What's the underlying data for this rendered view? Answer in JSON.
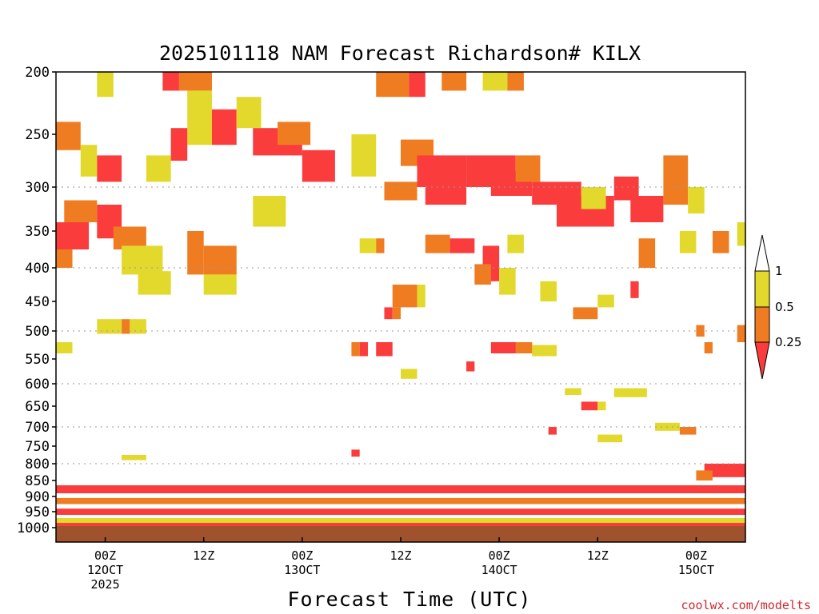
{
  "chart_data": {
    "type": "heatmap",
    "title": "2025101118 NAM Forecast Richardson# KILX",
    "xlabel": "Forecast Time (UTC)",
    "ylabel": "",
    "credit": "coolwx.com/modelts",
    "y_axis": {
      "scale": "pressure (hPa), inverted",
      "range": [
        1000,
        200
      ],
      "ticks": [
        "200",
        "250",
        "300",
        "350",
        "400",
        "450",
        "500",
        "550",
        "600",
        "650",
        "700",
        "750",
        "800",
        "850",
        "900",
        "950",
        "1000"
      ],
      "gridlines": [
        "300",
        "400",
        "500",
        "600",
        "700",
        "800"
      ]
    },
    "x_axis": {
      "range_hours": [
        -6,
        78
      ],
      "ticks": [
        {
          "hour": 0,
          "lines": [
            "00Z",
            "12OCT",
            "2025"
          ]
        },
        {
          "hour": 12,
          "lines": [
            "12Z"
          ]
        },
        {
          "hour": 24,
          "lines": [
            "00Z",
            "13OCT"
          ]
        },
        {
          "hour": 36,
          "lines": [
            "12Z"
          ]
        },
        {
          "hour": 48,
          "lines": [
            "00Z",
            "14OCT"
          ]
        },
        {
          "hour": 60,
          "lines": [
            "12Z"
          ]
        },
        {
          "hour": 72,
          "lines": [
            "00Z",
            "15OCT"
          ]
        }
      ]
    },
    "legend": {
      "placement": "right",
      "levels": [
        "1",
        "0.5",
        "0.25"
      ],
      "bins": [
        {
          "range": "0.5-1",
          "color": "#e2d92c"
        },
        {
          "range": "0.25-0.5",
          "color": "#f07c22"
        },
        {
          "range": "<0.25",
          "color": "#fa3c3c"
        }
      ]
    },
    "colors": {
      "high": "#e2d92c",
      "mid": "#f07c22",
      "low": "#fa3c3c",
      "ground": "#a0522d"
    },
    "cells": [
      {
        "t0": -1,
        "t1": 1,
        "p0": 200,
        "p1": 220,
        "c": "high"
      },
      {
        "t0": 7,
        "t1": 9,
        "p0": 200,
        "p1": 215,
        "c": "low"
      },
      {
        "t0": 9,
        "t1": 13,
        "p0": 200,
        "p1": 215,
        "c": "mid"
      },
      {
        "t0": 10,
        "t1": 13,
        "p0": 215,
        "p1": 260,
        "c": "high"
      },
      {
        "t0": 13,
        "t1": 16,
        "p0": 230,
        "p1": 260,
        "c": "low"
      },
      {
        "t0": 16,
        "t1": 19,
        "p0": 220,
        "p1": 245,
        "c": "high"
      },
      {
        "t0": 18,
        "t1": 24,
        "p0": 245,
        "p1": 270,
        "c": "low"
      },
      {
        "t0": 21,
        "t1": 25,
        "p0": 240,
        "p1": 260,
        "c": "mid"
      },
      {
        "t0": 24,
        "t1": 28,
        "p0": 265,
        "p1": 295,
        "c": "low"
      },
      {
        "t0": 33,
        "t1": 37,
        "p0": 200,
        "p1": 220,
        "c": "mid"
      },
      {
        "t0": 37,
        "t1": 39,
        "p0": 200,
        "p1": 220,
        "c": "low"
      },
      {
        "t0": 41,
        "t1": 44,
        "p0": 200,
        "p1": 215,
        "c": "mid"
      },
      {
        "t0": 46,
        "t1": 49,
        "p0": 200,
        "p1": 215,
        "c": "high"
      },
      {
        "t0": 49,
        "t1": 51,
        "p0": 200,
        "p1": 215,
        "c": "mid"
      },
      {
        "t0": -6,
        "t1": -3,
        "p0": 240,
        "p1": 265,
        "c": "mid"
      },
      {
        "t0": -3,
        "t1": -1,
        "p0": 260,
        "p1": 290,
        "c": "high"
      },
      {
        "t0": -1,
        "t1": 2,
        "p0": 270,
        "p1": 295,
        "c": "low"
      },
      {
        "t0": 5,
        "t1": 8,
        "p0": 270,
        "p1": 295,
        "c": "high"
      },
      {
        "t0": 8,
        "t1": 10,
        "p0": 245,
        "p1": 275,
        "c": "low"
      },
      {
        "t0": 30,
        "t1": 33,
        "p0": 250,
        "p1": 290,
        "c": "high"
      },
      {
        "t0": 36,
        "t1": 40,
        "p0": 255,
        "p1": 280,
        "c": "mid"
      },
      {
        "t0": 38,
        "t1": 44,
        "p0": 270,
        "p1": 300,
        "c": "low"
      },
      {
        "t0": 34,
        "t1": 38,
        "p0": 295,
        "p1": 315,
        "c": "mid"
      },
      {
        "t0": 39,
        "t1": 44,
        "p0": 295,
        "p1": 320,
        "c": "low"
      },
      {
        "t0": 44,
        "t1": 50,
        "p0": 270,
        "p1": 300,
        "c": "low"
      },
      {
        "t0": 47,
        "t1": 52,
        "p0": 285,
        "p1": 310,
        "c": "low"
      },
      {
        "t0": 50,
        "t1": 53,
        "p0": 270,
        "p1": 295,
        "c": "mid"
      },
      {
        "t0": 52,
        "t1": 58,
        "p0": 295,
        "p1": 320,
        "c": "low"
      },
      {
        "t0": 55,
        "t1": 62,
        "p0": 310,
        "p1": 345,
        "c": "low"
      },
      {
        "t0": 58,
        "t1": 61,
        "p0": 300,
        "p1": 325,
        "c": "high"
      },
      {
        "t0": 62,
        "t1": 65,
        "p0": 290,
        "p1": 315,
        "c": "low"
      },
      {
        "t0": 64,
        "t1": 68,
        "p0": 310,
        "p1": 340,
        "c": "low"
      },
      {
        "t0": 68,
        "t1": 71,
        "p0": 270,
        "p1": 320,
        "c": "mid"
      },
      {
        "t0": 71,
        "t1": 73,
        "p0": 300,
        "p1": 330,
        "c": "high"
      },
      {
        "t0": -6,
        "t1": -2,
        "p0": 340,
        "p1": 375,
        "c": "low"
      },
      {
        "t0": -5,
        "t1": -1,
        "p0": 315,
        "p1": 340,
        "c": "mid"
      },
      {
        "t0": -1,
        "t1": 2,
        "p0": 320,
        "p1": 360,
        "c": "low"
      },
      {
        "t0": 1,
        "t1": 5,
        "p0": 345,
        "p1": 375,
        "c": "mid"
      },
      {
        "t0": -6,
        "t1": -4,
        "p0": 375,
        "p1": 400,
        "c": "mid"
      },
      {
        "t0": 2,
        "t1": 7,
        "p0": 370,
        "p1": 410,
        "c": "high"
      },
      {
        "t0": 4,
        "t1": 8,
        "p0": 405,
        "p1": 440,
        "c": "high"
      },
      {
        "t0": 10,
        "t1": 12,
        "p0": 350,
        "p1": 410,
        "c": "mid"
      },
      {
        "t0": 12,
        "t1": 16,
        "p0": 370,
        "p1": 410,
        "c": "mid"
      },
      {
        "t0": 12,
        "t1": 16,
        "p0": 410,
        "p1": 440,
        "c": "high"
      },
      {
        "t0": 18,
        "t1": 22,
        "p0": 310,
        "p1": 345,
        "c": "high"
      },
      {
        "t0": 31,
        "t1": 33,
        "p0": 360,
        "p1": 380,
        "c": "high"
      },
      {
        "t0": 33,
        "t1": 34,
        "p0": 360,
        "p1": 380,
        "c": "mid"
      },
      {
        "t0": 42,
        "t1": 45,
        "p0": 360,
        "p1": 380,
        "c": "low"
      },
      {
        "t0": 39,
        "t1": 42,
        "p0": 355,
        "p1": 380,
        "c": "mid"
      },
      {
        "t0": 46,
        "t1": 48,
        "p0": 370,
        "p1": 420,
        "c": "low"
      },
      {
        "t0": 45,
        "t1": 47,
        "p0": 395,
        "p1": 425,
        "c": "mid"
      },
      {
        "t0": 48,
        "t1": 50,
        "p0": 400,
        "p1": 440,
        "c": "high"
      },
      {
        "t0": 49,
        "t1": 51,
        "p0": 355,
        "p1": 380,
        "c": "high"
      },
      {
        "t0": 65,
        "t1": 67,
        "p0": 360,
        "p1": 400,
        "c": "mid"
      },
      {
        "t0": 70,
        "t1": 72,
        "p0": 350,
        "p1": 380,
        "c": "high"
      },
      {
        "t0": 74,
        "t1": 76,
        "p0": 350,
        "p1": 380,
        "c": "mid"
      },
      {
        "t0": 77,
        "t1": 78,
        "p0": 340,
        "p1": 370,
        "c": "high"
      },
      {
        "t0": 35,
        "t1": 38,
        "p0": 425,
        "p1": 460,
        "c": "mid"
      },
      {
        "t0": 38,
        "t1": 39,
        "p0": 425,
        "p1": 460,
        "c": "high"
      },
      {
        "t0": 53,
        "t1": 55,
        "p0": 420,
        "p1": 450,
        "c": "high"
      },
      {
        "t0": 57,
        "t1": 60,
        "p0": 460,
        "p1": 480,
        "c": "mid"
      },
      {
        "t0": 60,
        "t1": 62,
        "p0": 440,
        "p1": 460,
        "c": "high"
      },
      {
        "t0": 64,
        "t1": 65,
        "p0": 420,
        "p1": 445,
        "c": "low"
      },
      {
        "t0": 34,
        "t1": 35,
        "p0": 460,
        "p1": 480,
        "c": "low"
      },
      {
        "t0": 35,
        "t1": 36,
        "p0": 460,
        "p1": 480,
        "c": "mid"
      },
      {
        "t0": -1,
        "t1": 2,
        "p0": 480,
        "p1": 505,
        "c": "high"
      },
      {
        "t0": 2,
        "t1": 3,
        "p0": 480,
        "p1": 505,
        "c": "mid"
      },
      {
        "t0": 3,
        "t1": 5,
        "p0": 480,
        "p1": 505,
        "c": "high"
      },
      {
        "t0": -6,
        "t1": -4,
        "p0": 520,
        "p1": 540,
        "c": "high"
      },
      {
        "t0": 30,
        "t1": 31,
        "p0": 520,
        "p1": 545,
        "c": "mid"
      },
      {
        "t0": 31,
        "t1": 32,
        "p0": 520,
        "p1": 545,
        "c": "low"
      },
      {
        "t0": 33,
        "t1": 35,
        "p0": 520,
        "p1": 545,
        "c": "low"
      },
      {
        "t0": 47,
        "t1": 52,
        "p0": 520,
        "p1": 540,
        "c": "low"
      },
      {
        "t0": 52,
        "t1": 55,
        "p0": 525,
        "p1": 545,
        "c": "high"
      },
      {
        "t0": 50,
        "t1": 52,
        "p0": 520,
        "p1": 540,
        "c": "mid"
      },
      {
        "t0": 72,
        "t1": 73,
        "p0": 490,
        "p1": 510,
        "c": "mid"
      },
      {
        "t0": 73,
        "t1": 74,
        "p0": 520,
        "p1": 540,
        "c": "mid"
      },
      {
        "t0": 77,
        "t1": 78,
        "p0": 490,
        "p1": 520,
        "c": "mid"
      },
      {
        "t0": 36,
        "t1": 38,
        "p0": 570,
        "p1": 590,
        "c": "high"
      },
      {
        "t0": 44,
        "t1": 45,
        "p0": 555,
        "p1": 575,
        "c": "low"
      },
      {
        "t0": 56,
        "t1": 58,
        "p0": 610,
        "p1": 625,
        "c": "high"
      },
      {
        "t0": 58,
        "t1": 60,
        "p0": 640,
        "p1": 660,
        "c": "low"
      },
      {
        "t0": 60,
        "t1": 61,
        "p0": 640,
        "p1": 660,
        "c": "high"
      },
      {
        "t0": 62,
        "t1": 66,
        "p0": 610,
        "p1": 630,
        "c": "high"
      },
      {
        "t0": 67,
        "t1": 70,
        "p0": 690,
        "p1": 710,
        "c": "high"
      },
      {
        "t0": 70,
        "t1": 72,
        "p0": 700,
        "p1": 720,
        "c": "mid"
      },
      {
        "t0": 54,
        "t1": 55,
        "p0": 700,
        "p1": 720,
        "c": "low"
      },
      {
        "t0": 60,
        "t1": 63,
        "p0": 720,
        "p1": 740,
        "c": "high"
      },
      {
        "t0": 2,
        "t1": 5,
        "p0": 775,
        "p1": 790,
        "c": "high"
      },
      {
        "t0": 30,
        "t1": 31,
        "p0": 760,
        "p1": 780,
        "c": "low"
      },
      {
        "t0": 73,
        "t1": 78,
        "p0": 800,
        "p1": 840,
        "c": "low"
      },
      {
        "t0": 72,
        "t1": 74,
        "p0": 820,
        "p1": 850,
        "c": "mid"
      },
      {
        "t0": -6,
        "t1": 78,
        "p0": 865,
        "p1": 890,
        "c": "low"
      },
      {
        "t0": -6,
        "t1": 78,
        "p0": 905,
        "p1": 925,
        "c": "mid"
      },
      {
        "t0": -6,
        "t1": 78,
        "p0": 940,
        "p1": 960,
        "c": "low"
      },
      {
        "t0": -6,
        "t1": 78,
        "p0": 970,
        "p1": 985,
        "c": "high"
      },
      {
        "t0": -6,
        "t1": 78,
        "p0": 985,
        "p1": 1000,
        "c": "low"
      }
    ]
  }
}
